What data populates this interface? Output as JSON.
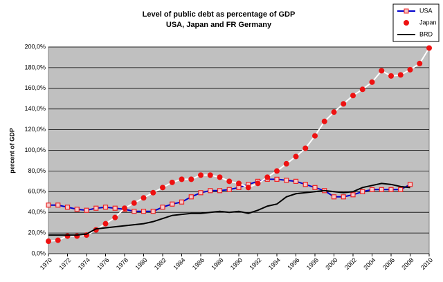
{
  "chart_data": {
    "type": "line",
    "title": "Level of public debt as percentage of GDP",
    "subtitle": "USA, Japan and FR Germany",
    "y_label": "percent of GDP",
    "x": [
      1970,
      1971,
      1972,
      1973,
      1974,
      1975,
      1976,
      1977,
      1978,
      1979,
      1980,
      1981,
      1982,
      1983,
      1984,
      1985,
      1986,
      1987,
      1988,
      1989,
      1990,
      1991,
      1992,
      1993,
      1994,
      1995,
      1996,
      1997,
      1998,
      1999,
      2000,
      2001,
      2002,
      2003,
      2004,
      2005,
      2006,
      2007,
      2008,
      2009,
      2010
    ],
    "series": [
      {
        "name": "USA",
        "color": "#0000cc",
        "marker": "square",
        "marker_color": "#ee2222",
        "values": [
          47,
          47,
          45,
          43,
          42,
          44,
          45,
          44,
          43,
          41,
          41,
          41,
          45,
          48,
          50,
          55,
          59,
          61,
          61,
          62,
          64,
          67,
          70,
          72,
          72,
          71,
          70,
          67,
          64,
          61,
          55,
          55,
          57,
          60,
          62,
          62,
          62,
          62,
          67,
          null,
          null
        ]
      },
      {
        "name": "Japan",
        "color": "#ffffff",
        "marker": "circle",
        "marker_color": "#ee1111",
        "values": [
          12,
          13,
          17,
          17,
          18,
          23,
          29,
          35,
          44,
          49,
          54,
          59,
          64,
          69,
          72,
          72,
          76,
          76,
          74,
          70,
          68,
          64,
          68,
          74,
          80,
          87,
          94,
          102,
          114,
          128,
          137,
          145,
          153,
          159,
          166,
          177,
          172,
          173,
          178,
          184,
          199
        ]
      },
      {
        "name": "BRD",
        "color": "#000000",
        "values": [
          18,
          18,
          18,
          18,
          19,
          24,
          25,
          26,
          27,
          28,
          29,
          31,
          34,
          37,
          38,
          39,
          39,
          40,
          41,
          40,
          41,
          39,
          42,
          46,
          48,
          55,
          58,
          59,
          60,
          61,
          60,
          59,
          60,
          64,
          66,
          68,
          67,
          65,
          64,
          null,
          null
        ]
      }
    ],
    "xlim": [
      1970,
      2010
    ],
    "xticks": [
      1970,
      1972,
      1974,
      1976,
      1978,
      1980,
      1982,
      1984,
      1986,
      1988,
      1990,
      1992,
      1994,
      1996,
      1998,
      2000,
      2002,
      2004,
      2006,
      2008,
      2010
    ],
    "ylim": [
      0,
      200
    ],
    "yticks": [
      {
        "value": 0,
        "label": "0,0%"
      },
      {
        "value": 20,
        "label": "20,0%"
      },
      {
        "value": 40,
        "label": "40,0%"
      },
      {
        "value": 60,
        "label": "60,0%"
      },
      {
        "value": 80,
        "label": "80,0%"
      },
      {
        "value": 100,
        "label": "100,0%"
      },
      {
        "value": 120,
        "label": "120,0%"
      },
      {
        "value": 140,
        "label": "140,0%"
      },
      {
        "value": 160,
        "label": "160,0%"
      },
      {
        "value": 180,
        "label": "180,0%"
      },
      {
        "value": 200,
        "label": "200,0%"
      }
    ],
    "grid": true,
    "legend": "top-right"
  }
}
